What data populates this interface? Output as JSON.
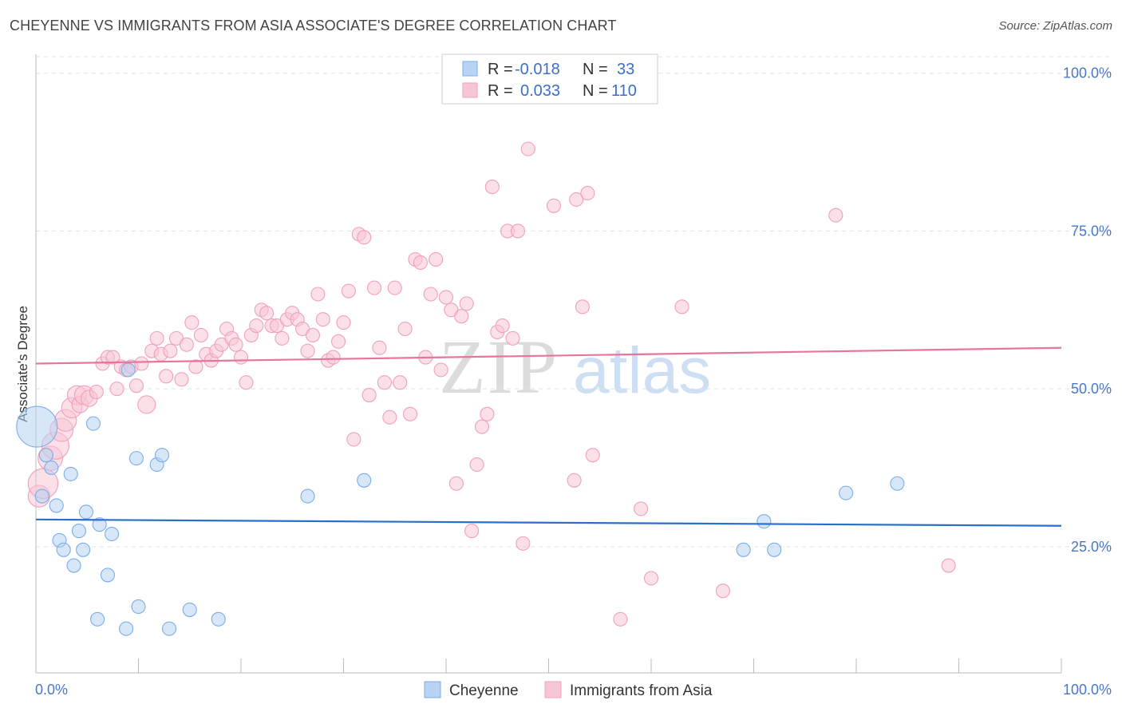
{
  "title": "CHEYENNE VS IMMIGRANTS FROM ASIA ASSOCIATE'S DEGREE CORRELATION CHART",
  "source": "Source: ZipAtlas.com",
  "watermark": {
    "zip": "ZIP",
    "atlas": "atlas"
  },
  "chart_data": {
    "type": "scatter",
    "ylabel": "Associate's Degree",
    "xlim": [
      0,
      100
    ],
    "ylim": [
      5,
      103
    ],
    "x_tick_labels": [
      "0.0%",
      "100.0%"
    ],
    "y_tick_labels": [
      "25.0%",
      "50.0%",
      "75.0%",
      "100.0%"
    ],
    "y_ticks": [
      25,
      50,
      75,
      100
    ],
    "legend": [
      {
        "r_label": "R =",
        "r_value": "-0.018",
        "n_label": "N =",
        "n_value": "33"
      },
      {
        "r_label": "R =",
        "r_value": "0.033",
        "n_label": "N =",
        "n_value": "110"
      }
    ],
    "series": [
      {
        "name": "Cheyenne",
        "color": "#7aaee8",
        "fill": "#b8d3f3",
        "line_color": "#2a6fc9",
        "trend": {
          "x": [
            0,
            100
          ],
          "y": [
            29.3,
            28.3
          ]
        },
        "points": [
          [
            0.1,
            44,
            3
          ],
          [
            0.6,
            33,
            1
          ],
          [
            1,
            39.5,
            1
          ],
          [
            1.5,
            37.5,
            1
          ],
          [
            2,
            31.5,
            1
          ],
          [
            2.3,
            26,
            1
          ],
          [
            2.7,
            24.5,
            1
          ],
          [
            3.4,
            36.5,
            1
          ],
          [
            3.7,
            22,
            1
          ],
          [
            4.2,
            27.5,
            1
          ],
          [
            4.6,
            24.5,
            1
          ],
          [
            4.9,
            30.5,
            1
          ],
          [
            5.6,
            44.5,
            1
          ],
          [
            6,
            13.5,
            1
          ],
          [
            6.2,
            28.5,
            1
          ],
          [
            7,
            20.5,
            1
          ],
          [
            7.4,
            27,
            1
          ],
          [
            8.8,
            12,
            1
          ],
          [
            9,
            53,
            1
          ],
          [
            9.8,
            39,
            1
          ],
          [
            10,
            15.5,
            1
          ],
          [
            11.8,
            38,
            1
          ],
          [
            12.3,
            39.5,
            1
          ],
          [
            13,
            12,
            1
          ],
          [
            15,
            15,
            1
          ],
          [
            17.8,
            13.5,
            1
          ],
          [
            26.5,
            33,
            1
          ],
          [
            32,
            35.5,
            1
          ],
          [
            69,
            24.5,
            1
          ],
          [
            71,
            29,
            1
          ],
          [
            72,
            24.5,
            1
          ],
          [
            79,
            33.5,
            1
          ],
          [
            84,
            35,
            1
          ]
        ]
      },
      {
        "name": "Immigrants from Asia",
        "color": "#f0a0bb",
        "fill": "#f7c6d6",
        "line_color": "#e8759b",
        "trend": {
          "x": [
            0,
            100
          ],
          "y": [
            54,
            56.5
          ]
        },
        "points": [
          [
            0.3,
            33,
            1.6
          ],
          [
            0.7,
            35,
            2.2
          ],
          [
            1.4,
            39,
            1.8
          ],
          [
            1.9,
            41,
            2
          ],
          [
            2.5,
            43.5,
            1.7
          ],
          [
            2.9,
            45,
            1.6
          ],
          [
            3.5,
            47,
            1.5
          ],
          [
            4,
            49,
            1.4
          ],
          [
            4.3,
            47.5,
            1.2
          ],
          [
            4.7,
            49,
            1.4
          ],
          [
            5.2,
            48.5,
            1.2
          ],
          [
            5.9,
            49.5,
            1
          ],
          [
            6.5,
            54,
            1
          ],
          [
            7,
            55,
            1
          ],
          [
            7.5,
            55,
            1
          ],
          [
            7.9,
            50,
            1
          ],
          [
            8.3,
            53.5,
            1
          ],
          [
            8.8,
            53,
            1
          ],
          [
            9.3,
            53.5,
            1
          ],
          [
            9.8,
            50.5,
            1
          ],
          [
            10.3,
            54,
            1
          ],
          [
            10.8,
            47.5,
            1.3
          ],
          [
            11.3,
            56,
            1
          ],
          [
            11.8,
            58,
            1
          ],
          [
            12.2,
            55.5,
            1
          ],
          [
            12.7,
            52,
            1
          ],
          [
            13.1,
            56,
            1
          ],
          [
            13.7,
            58,
            1
          ],
          [
            14.2,
            51.5,
            1
          ],
          [
            14.7,
            57,
            1
          ],
          [
            15.2,
            60.5,
            1
          ],
          [
            15.6,
            53.5,
            1
          ],
          [
            16.1,
            58.5,
            1
          ],
          [
            16.6,
            55.5,
            1
          ],
          [
            17.1,
            54.5,
            1
          ],
          [
            17.6,
            56,
            1
          ],
          [
            18.1,
            57,
            1
          ],
          [
            18.6,
            59.5,
            1
          ],
          [
            19.1,
            58,
            1
          ],
          [
            19.5,
            57,
            1
          ],
          [
            20,
            55,
            1
          ],
          [
            20.5,
            51,
            1
          ],
          [
            21,
            58.5,
            1
          ],
          [
            21.5,
            60,
            1
          ],
          [
            22,
            62.5,
            1
          ],
          [
            22.5,
            62,
            1
          ],
          [
            23,
            60,
            1
          ],
          [
            23.5,
            60,
            1
          ],
          [
            24,
            58,
            1
          ],
          [
            24.5,
            61,
            1
          ],
          [
            25,
            62,
            1
          ],
          [
            25.5,
            61,
            1
          ],
          [
            26,
            59.5,
            1
          ],
          [
            26.5,
            56,
            1
          ],
          [
            27,
            58.5,
            1
          ],
          [
            27.5,
            65,
            1
          ],
          [
            28,
            61,
            1
          ],
          [
            28.5,
            54.5,
            1
          ],
          [
            29,
            55,
            1
          ],
          [
            29.5,
            57.5,
            1
          ],
          [
            30,
            60.5,
            1
          ],
          [
            30.5,
            65.5,
            1
          ],
          [
            31,
            42,
            1
          ],
          [
            31.5,
            74.5,
            1
          ],
          [
            32,
            74,
            1
          ],
          [
            32.5,
            49,
            1
          ],
          [
            33,
            66,
            1
          ],
          [
            33.5,
            56.5,
            1
          ],
          [
            34,
            51,
            1
          ],
          [
            34.5,
            45.5,
            1
          ],
          [
            35,
            66,
            1
          ],
          [
            35.5,
            51,
            1
          ],
          [
            36,
            59.5,
            1
          ],
          [
            36.5,
            46,
            1
          ],
          [
            37,
            70.5,
            1
          ],
          [
            37.5,
            70,
            1
          ],
          [
            38,
            55,
            1
          ],
          [
            38.5,
            65,
            1
          ],
          [
            39,
            70.5,
            1
          ],
          [
            39.5,
            53,
            1
          ],
          [
            40,
            64.5,
            1
          ],
          [
            40.5,
            62.5,
            1
          ],
          [
            41,
            35,
            1
          ],
          [
            41.5,
            61.5,
            1
          ],
          [
            42,
            63.5,
            1
          ],
          [
            42.5,
            27.5,
            1
          ],
          [
            43,
            38,
            1
          ],
          [
            43.5,
            44,
            1
          ],
          [
            44,
            46,
            1
          ],
          [
            44.5,
            82,
            1
          ],
          [
            45,
            59,
            1
          ],
          [
            45.5,
            60,
            1
          ],
          [
            46,
            75,
            1
          ],
          [
            46.5,
            58,
            1
          ],
          [
            47,
            75,
            1
          ],
          [
            47.5,
            25.5,
            1
          ],
          [
            48,
            88,
            1
          ],
          [
            50.5,
            79,
            1
          ],
          [
            52.5,
            35.5,
            1
          ],
          [
            52.7,
            80,
            1
          ],
          [
            53.3,
            63,
            1
          ],
          [
            53.8,
            81,
            1
          ],
          [
            54.3,
            39.5,
            1
          ],
          [
            57,
            13.5,
            1
          ],
          [
            59,
            31,
            1
          ],
          [
            60,
            20,
            1
          ],
          [
            63,
            63,
            1
          ],
          [
            67,
            18,
            1
          ],
          [
            78,
            77.5,
            1
          ],
          [
            89,
            22,
            1
          ]
        ]
      }
    ]
  }
}
